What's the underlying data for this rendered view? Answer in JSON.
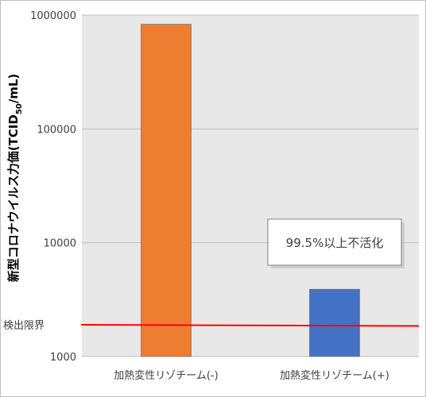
{
  "chart_data": {
    "type": "bar",
    "scale": "log",
    "ylim": [
      1000,
      1000000
    ],
    "yticks": [
      {
        "value": 1000,
        "label": "1000"
      },
      {
        "value": 10000,
        "label": "10000"
      },
      {
        "value": 100000,
        "label": "100000"
      },
      {
        "value": 1000000,
        "label": "1000000"
      }
    ],
    "ylabel": {
      "prefix": "新型コロナウイルス力価(TCID",
      "sub": "50",
      "suffix": "/mL)"
    },
    "categories": [
      "加熱変性リゾチーム(-)",
      "加熱変性リゾチーム(+)"
    ],
    "values": [
      830000,
      3900
    ],
    "colors": [
      "#ed7d31",
      "#4472c4"
    ],
    "detection_limit": {
      "label": "検出限界",
      "value": 1900,
      "color": "#ff0000"
    },
    "annotation": "99.5%以上不活化",
    "grid": true,
    "plot_background": "#e8e8e8"
  }
}
